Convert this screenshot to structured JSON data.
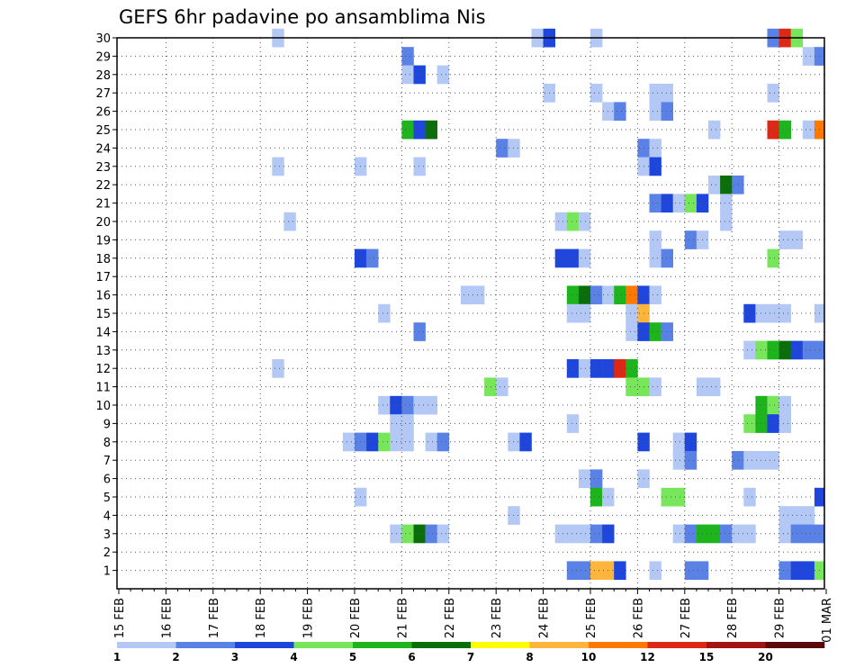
{
  "chart_data": {
    "type": "heatmap",
    "title": "GEFS 6hr padavine po ansamblima Nis",
    "y_ticks": [
      "1",
      "2",
      "3",
      "4",
      "5",
      "6",
      "7",
      "8",
      "9",
      "10",
      "11",
      "12",
      "13",
      "14",
      "15",
      "16",
      "17",
      "18",
      "19",
      "20",
      "21",
      "22",
      "23",
      "24",
      "25",
      "26",
      "27",
      "28",
      "29",
      "30"
    ],
    "x_ticks": [
      "15 FEB",
      "16 FEB",
      "17 FEB",
      "18 FEB",
      "19 FEB",
      "20 FEB",
      "21 FEB",
      "22 FEB",
      "23 FEB",
      "24 FEB",
      "25 FEB",
      "26 FEB",
      "27 FEB",
      "28 FEB",
      "29 FEB",
      "01 MAR"
    ],
    "grid": "dotted",
    "colorbar": {
      "levels": [
        "1",
        "2",
        "3",
        "4",
        "5",
        "6",
        "7",
        "8",
        "10",
        "12",
        "15",
        "20"
      ],
      "colors": [
        "#b4c8f5",
        "#5a82e6",
        "#1e46dc",
        "#78e65a",
        "#1eb41e",
        "#0a6e0a",
        "#ffff00",
        "#ffb43c",
        "#ff7800",
        "#dc2814",
        "#a01414",
        "#5a0a0a"
      ]
    },
    "cells": [
      {
        "m": 30,
        "t": 13,
        "c": 1
      },
      {
        "m": 30,
        "t": 35,
        "c": 1
      },
      {
        "m": 30,
        "t": 36,
        "c": 3
      },
      {
        "m": 30,
        "t": 40,
        "c": 1
      },
      {
        "m": 30,
        "t": 55,
        "c": 2
      },
      {
        "m": 30,
        "t": 56,
        "c": 10
      },
      {
        "m": 30,
        "t": 57,
        "c": 4
      },
      {
        "m": 29,
        "t": 24,
        "c": 2
      },
      {
        "m": 29,
        "t": 58,
        "c": 1
      },
      {
        "m": 29,
        "t": 59,
        "c": 2
      },
      {
        "m": 28,
        "t": 24,
        "c": 1
      },
      {
        "m": 28,
        "t": 25,
        "c": 3
      },
      {
        "m": 28,
        "t": 27,
        "c": 1
      },
      {
        "m": 28,
        "t": 60,
        "c": 1
      },
      {
        "m": 27,
        "t": 36,
        "c": 1
      },
      {
        "m": 27,
        "t": 40,
        "c": 1
      },
      {
        "m": 27,
        "t": 45,
        "c": 1
      },
      {
        "m": 27,
        "t": 46,
        "c": 1
      },
      {
        "m": 27,
        "t": 55,
        "c": 1
      },
      {
        "m": 26,
        "t": 41,
        "c": 1
      },
      {
        "m": 26,
        "t": 42,
        "c": 2
      },
      {
        "m": 26,
        "t": 45,
        "c": 1
      },
      {
        "m": 26,
        "t": 46,
        "c": 2
      },
      {
        "m": 25,
        "t": 24,
        "c": 5
      },
      {
        "m": 25,
        "t": 25,
        "c": 3
      },
      {
        "m": 25,
        "t": 26,
        "c": 6
      },
      {
        "m": 25,
        "t": 50,
        "c": 1
      },
      {
        "m": 25,
        "t": 55,
        "c": 10
      },
      {
        "m": 25,
        "t": 56,
        "c": 5
      },
      {
        "m": 25,
        "t": 58,
        "c": 1
      },
      {
        "m": 25,
        "t": 59,
        "c": 9
      },
      {
        "m": 25,
        "t": 60,
        "c": 6
      },
      {
        "m": 24,
        "t": 32,
        "c": 2
      },
      {
        "m": 24,
        "t": 33,
        "c": 1
      },
      {
        "m": 24,
        "t": 44,
        "c": 2
      },
      {
        "m": 24,
        "t": 45,
        "c": 1
      },
      {
        "m": 23,
        "t": 13,
        "c": 1
      },
      {
        "m": 23,
        "t": 20,
        "c": 1
      },
      {
        "m": 23,
        "t": 25,
        "c": 1
      },
      {
        "m": 23,
        "t": 44,
        "c": 1
      },
      {
        "m": 23,
        "t": 45,
        "c": 3
      },
      {
        "m": 22,
        "t": 50,
        "c": 1
      },
      {
        "m": 22,
        "t": 51,
        "c": 6
      },
      {
        "m": 22,
        "t": 52,
        "c": 2
      },
      {
        "m": 21,
        "t": 45,
        "c": 2
      },
      {
        "m": 21,
        "t": 46,
        "c": 3
      },
      {
        "m": 21,
        "t": 47,
        "c": 1
      },
      {
        "m": 21,
        "t": 48,
        "c": 4
      },
      {
        "m": 21,
        "t": 49,
        "c": 3
      },
      {
        "m": 21,
        "t": 51,
        "c": 1
      },
      {
        "m": 20,
        "t": 14,
        "c": 1
      },
      {
        "m": 20,
        "t": 37,
        "c": 1
      },
      {
        "m": 20,
        "t": 38,
        "c": 4
      },
      {
        "m": 20,
        "t": 39,
        "c": 1
      },
      {
        "m": 20,
        "t": 51,
        "c": 1
      },
      {
        "m": 19,
        "t": 45,
        "c": 1
      },
      {
        "m": 19,
        "t": 48,
        "c": 2
      },
      {
        "m": 19,
        "t": 49,
        "c": 1
      },
      {
        "m": 19,
        "t": 56,
        "c": 1
      },
      {
        "m": 19,
        "t": 57,
        "c": 1
      },
      {
        "m": 18,
        "t": 20,
        "c": 3
      },
      {
        "m": 18,
        "t": 21,
        "c": 2
      },
      {
        "m": 18,
        "t": 37,
        "c": 3
      },
      {
        "m": 18,
        "t": 38,
        "c": 3
      },
      {
        "m": 18,
        "t": 39,
        "c": 1
      },
      {
        "m": 18,
        "t": 45,
        "c": 1
      },
      {
        "m": 18,
        "t": 46,
        "c": 2
      },
      {
        "m": 18,
        "t": 55,
        "c": 4
      },
      {
        "m": 16,
        "t": 29,
        "c": 1
      },
      {
        "m": 16,
        "t": 30,
        "c": 1
      },
      {
        "m": 16,
        "t": 38,
        "c": 5
      },
      {
        "m": 16,
        "t": 39,
        "c": 6
      },
      {
        "m": 16,
        "t": 40,
        "c": 2
      },
      {
        "m": 16,
        "t": 41,
        "c": 1
      },
      {
        "m": 16,
        "t": 42,
        "c": 5
      },
      {
        "m": 16,
        "t": 43,
        "c": 9
      },
      {
        "m": 16,
        "t": 44,
        "c": 3
      },
      {
        "m": 16,
        "t": 45,
        "c": 1
      },
      {
        "m": 15,
        "t": 22,
        "c": 1
      },
      {
        "m": 15,
        "t": 38,
        "c": 1
      },
      {
        "m": 15,
        "t": 39,
        "c": 1
      },
      {
        "m": 15,
        "t": 43,
        "c": 1
      },
      {
        "m": 15,
        "t": 44,
        "c": 8
      },
      {
        "m": 15,
        "t": 53,
        "c": 3
      },
      {
        "m": 15,
        "t": 54,
        "c": 1
      },
      {
        "m": 15,
        "t": 55,
        "c": 1
      },
      {
        "m": 15,
        "t": 56,
        "c": 1
      },
      {
        "m": 15,
        "t": 59,
        "c": 1
      },
      {
        "m": 14,
        "t": 25,
        "c": 2
      },
      {
        "m": 14,
        "t": 43,
        "c": 1
      },
      {
        "m": 14,
        "t": 44,
        "c": 3
      },
      {
        "m": 14,
        "t": 45,
        "c": 5
      },
      {
        "m": 14,
        "t": 46,
        "c": 2
      },
      {
        "m": 14,
        "t": 60,
        "c": 1
      },
      {
        "m": 13,
        "t": 53,
        "c": 1
      },
      {
        "m": 13,
        "t": 54,
        "c": 4
      },
      {
        "m": 13,
        "t": 55,
        "c": 5
      },
      {
        "m": 13,
        "t": 56,
        "c": 6
      },
      {
        "m": 13,
        "t": 57,
        "c": 3
      },
      {
        "m": 13,
        "t": 58,
        "c": 2
      },
      {
        "m": 13,
        "t": 59,
        "c": 2
      },
      {
        "m": 13,
        "t": 60,
        "c": 2
      },
      {
        "m": 12,
        "t": 13,
        "c": 1
      },
      {
        "m": 12,
        "t": 38,
        "c": 3
      },
      {
        "m": 12,
        "t": 39,
        "c": 1
      },
      {
        "m": 12,
        "t": 40,
        "c": 3
      },
      {
        "m": 12,
        "t": 41,
        "c": 3
      },
      {
        "m": 12,
        "t": 42,
        "c": 10
      },
      {
        "m": 12,
        "t": 43,
        "c": 5
      },
      {
        "m": 11,
        "t": 31,
        "c": 4
      },
      {
        "m": 11,
        "t": 32,
        "c": 1
      },
      {
        "m": 11,
        "t": 43,
        "c": 4
      },
      {
        "m": 11,
        "t": 44,
        "c": 4
      },
      {
        "m": 11,
        "t": 45,
        "c": 1
      },
      {
        "m": 11,
        "t": 49,
        "c": 1
      },
      {
        "m": 11,
        "t": 50,
        "c": 1
      },
      {
        "m": 10,
        "t": 22,
        "c": 1
      },
      {
        "m": 10,
        "t": 23,
        "c": 3
      },
      {
        "m": 10,
        "t": 24,
        "c": 2
      },
      {
        "m": 10,
        "t": 25,
        "c": 1
      },
      {
        "m": 10,
        "t": 26,
        "c": 1
      },
      {
        "m": 10,
        "t": 54,
        "c": 5
      },
      {
        "m": 10,
        "t": 55,
        "c": 4
      },
      {
        "m": 10,
        "t": 56,
        "c": 1
      },
      {
        "m": 9,
        "t": 23,
        "c": 1
      },
      {
        "m": 9,
        "t": 24,
        "c": 1
      },
      {
        "m": 9,
        "t": 38,
        "c": 1
      },
      {
        "m": 9,
        "t": 53,
        "c": 4
      },
      {
        "m": 9,
        "t": 54,
        "c": 5
      },
      {
        "m": 9,
        "t": 55,
        "c": 3
      },
      {
        "m": 9,
        "t": 56,
        "c": 1
      },
      {
        "m": 8,
        "t": 19,
        "c": 1
      },
      {
        "m": 8,
        "t": 20,
        "c": 2
      },
      {
        "m": 8,
        "t": 21,
        "c": 3
      },
      {
        "m": 8,
        "t": 22,
        "c": 4
      },
      {
        "m": 8,
        "t": 23,
        "c": 1
      },
      {
        "m": 8,
        "t": 24,
        "c": 1
      },
      {
        "m": 8,
        "t": 26,
        "c": 1
      },
      {
        "m": 8,
        "t": 27,
        "c": 2
      },
      {
        "m": 8,
        "t": 33,
        "c": 1
      },
      {
        "m": 8,
        "t": 34,
        "c": 3
      },
      {
        "m": 8,
        "t": 44,
        "c": 3
      },
      {
        "m": 8,
        "t": 47,
        "c": 1
      },
      {
        "m": 8,
        "t": 48,
        "c": 3
      },
      {
        "m": 7,
        "t": 47,
        "c": 1
      },
      {
        "m": 7,
        "t": 48,
        "c": 2
      },
      {
        "m": 7,
        "t": 52,
        "c": 2
      },
      {
        "m": 7,
        "t": 53,
        "c": 1
      },
      {
        "m": 7,
        "t": 54,
        "c": 1
      },
      {
        "m": 7,
        "t": 55,
        "c": 1
      },
      {
        "m": 6,
        "t": 39,
        "c": 1
      },
      {
        "m": 6,
        "t": 40,
        "c": 2
      },
      {
        "m": 6,
        "t": 44,
        "c": 1
      },
      {
        "m": 5,
        "t": 20,
        "c": 1
      },
      {
        "m": 5,
        "t": 40,
        "c": 5
      },
      {
        "m": 5,
        "t": 41,
        "c": 1
      },
      {
        "m": 5,
        "t": 46,
        "c": 4
      },
      {
        "m": 5,
        "t": 47,
        "c": 4
      },
      {
        "m": 5,
        "t": 53,
        "c": 1
      },
      {
        "m": 5,
        "t": 59,
        "c": 3
      },
      {
        "m": 4,
        "t": 33,
        "c": 1
      },
      {
        "m": 4,
        "t": 56,
        "c": 1
      },
      {
        "m": 4,
        "t": 57,
        "c": 1
      },
      {
        "m": 4,
        "t": 58,
        "c": 1
      },
      {
        "m": 4,
        "t": 60,
        "c": 3
      },
      {
        "m": 3,
        "t": 23,
        "c": 1
      },
      {
        "m": 3,
        "t": 24,
        "c": 4
      },
      {
        "m": 3,
        "t": 25,
        "c": 6
      },
      {
        "m": 3,
        "t": 26,
        "c": 2
      },
      {
        "m": 3,
        "t": 27,
        "c": 1
      },
      {
        "m": 3,
        "t": 37,
        "c": 1
      },
      {
        "m": 3,
        "t": 38,
        "c": 1
      },
      {
        "m": 3,
        "t": 39,
        "c": 1
      },
      {
        "m": 3,
        "t": 40,
        "c": 2
      },
      {
        "m": 3,
        "t": 41,
        "c": 3
      },
      {
        "m": 3,
        "t": 47,
        "c": 1
      },
      {
        "m": 3,
        "t": 48,
        "c": 2
      },
      {
        "m": 3,
        "t": 49,
        "c": 5
      },
      {
        "m": 3,
        "t": 50,
        "c": 5
      },
      {
        "m": 3,
        "t": 51,
        "c": 2
      },
      {
        "m": 3,
        "t": 52,
        "c": 1
      },
      {
        "m": 3,
        "t": 53,
        "c": 1
      },
      {
        "m": 3,
        "t": 56,
        "c": 1
      },
      {
        "m": 3,
        "t": 57,
        "c": 2
      },
      {
        "m": 3,
        "t": 58,
        "c": 2
      },
      {
        "m": 3,
        "t": 59,
        "c": 2
      },
      {
        "m": 1,
        "t": 38,
        "c": 2
      },
      {
        "m": 1,
        "t": 39,
        "c": 2
      },
      {
        "m": 1,
        "t": 40,
        "c": 8
      },
      {
        "m": 1,
        "t": 41,
        "c": 8
      },
      {
        "m": 1,
        "t": 42,
        "c": 3
      },
      {
        "m": 1,
        "t": 45,
        "c": 1
      },
      {
        "m": 1,
        "t": 48,
        "c": 2
      },
      {
        "m": 1,
        "t": 49,
        "c": 2
      },
      {
        "m": 1,
        "t": 56,
        "c": 2
      },
      {
        "m": 1,
        "t": 57,
        "c": 3
      },
      {
        "m": 1,
        "t": 58,
        "c": 3
      },
      {
        "m": 1,
        "t": 59,
        "c": 4
      },
      {
        "m": 1,
        "t": 60,
        "c": 9
      }
    ]
  }
}
